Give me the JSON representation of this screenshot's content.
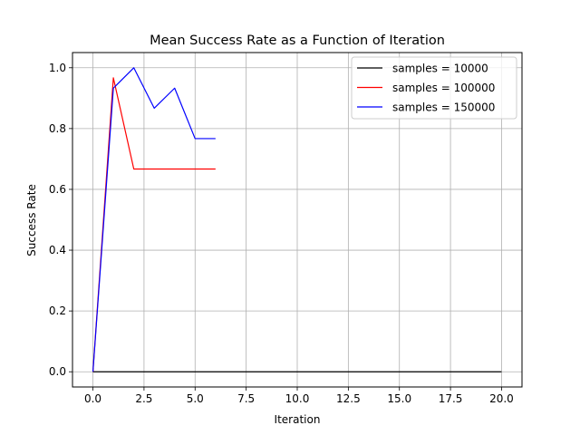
{
  "chart_data": {
    "type": "line",
    "title": "Mean Success Rate as a Function of Iteration",
    "xlabel": "Iteration",
    "ylabel": "Success Rate",
    "xlim": [
      -1.0,
      21.0
    ],
    "ylim": [
      -0.05,
      1.05
    ],
    "x_ticks": [
      0.0,
      2.5,
      5.0,
      7.5,
      10.0,
      12.5,
      15.0,
      17.5,
      20.0
    ],
    "x_tick_labels": [
      "0.0",
      "2.5",
      "5.0",
      "7.5",
      "10.0",
      "12.5",
      "15.0",
      "17.5",
      "20.0"
    ],
    "y_ticks": [
      0.0,
      0.2,
      0.4,
      0.6,
      0.8,
      1.0
    ],
    "y_tick_labels": [
      "0.0",
      "0.2",
      "0.4",
      "0.6",
      "0.8",
      "1.0"
    ],
    "grid": true,
    "legend_position": "top-right",
    "series": [
      {
        "name": "samples = 10000",
        "color": "#000000",
        "x": [
          0,
          1,
          2,
          3,
          4,
          5,
          6,
          7,
          8,
          9,
          10,
          11,
          12,
          13,
          14,
          15,
          16,
          17,
          18,
          19,
          20
        ],
        "y": [
          0,
          0,
          0,
          0,
          0,
          0,
          0,
          0,
          0,
          0,
          0,
          0,
          0,
          0,
          0,
          0,
          0,
          0,
          0,
          0,
          0
        ]
      },
      {
        "name": "samples = 100000",
        "color": "#ff0000",
        "x": [
          0,
          1,
          2,
          3,
          4,
          5,
          6
        ],
        "y": [
          0.0,
          0.967,
          0.667,
          0.667,
          0.667,
          0.667,
          0.667
        ]
      },
      {
        "name": "samples = 150000",
        "color": "#0000ff",
        "x": [
          0,
          1,
          2,
          3,
          4,
          5,
          6
        ],
        "y": [
          0.0,
          0.933,
          1.0,
          0.867,
          0.933,
          0.767,
          0.767
        ]
      }
    ]
  }
}
